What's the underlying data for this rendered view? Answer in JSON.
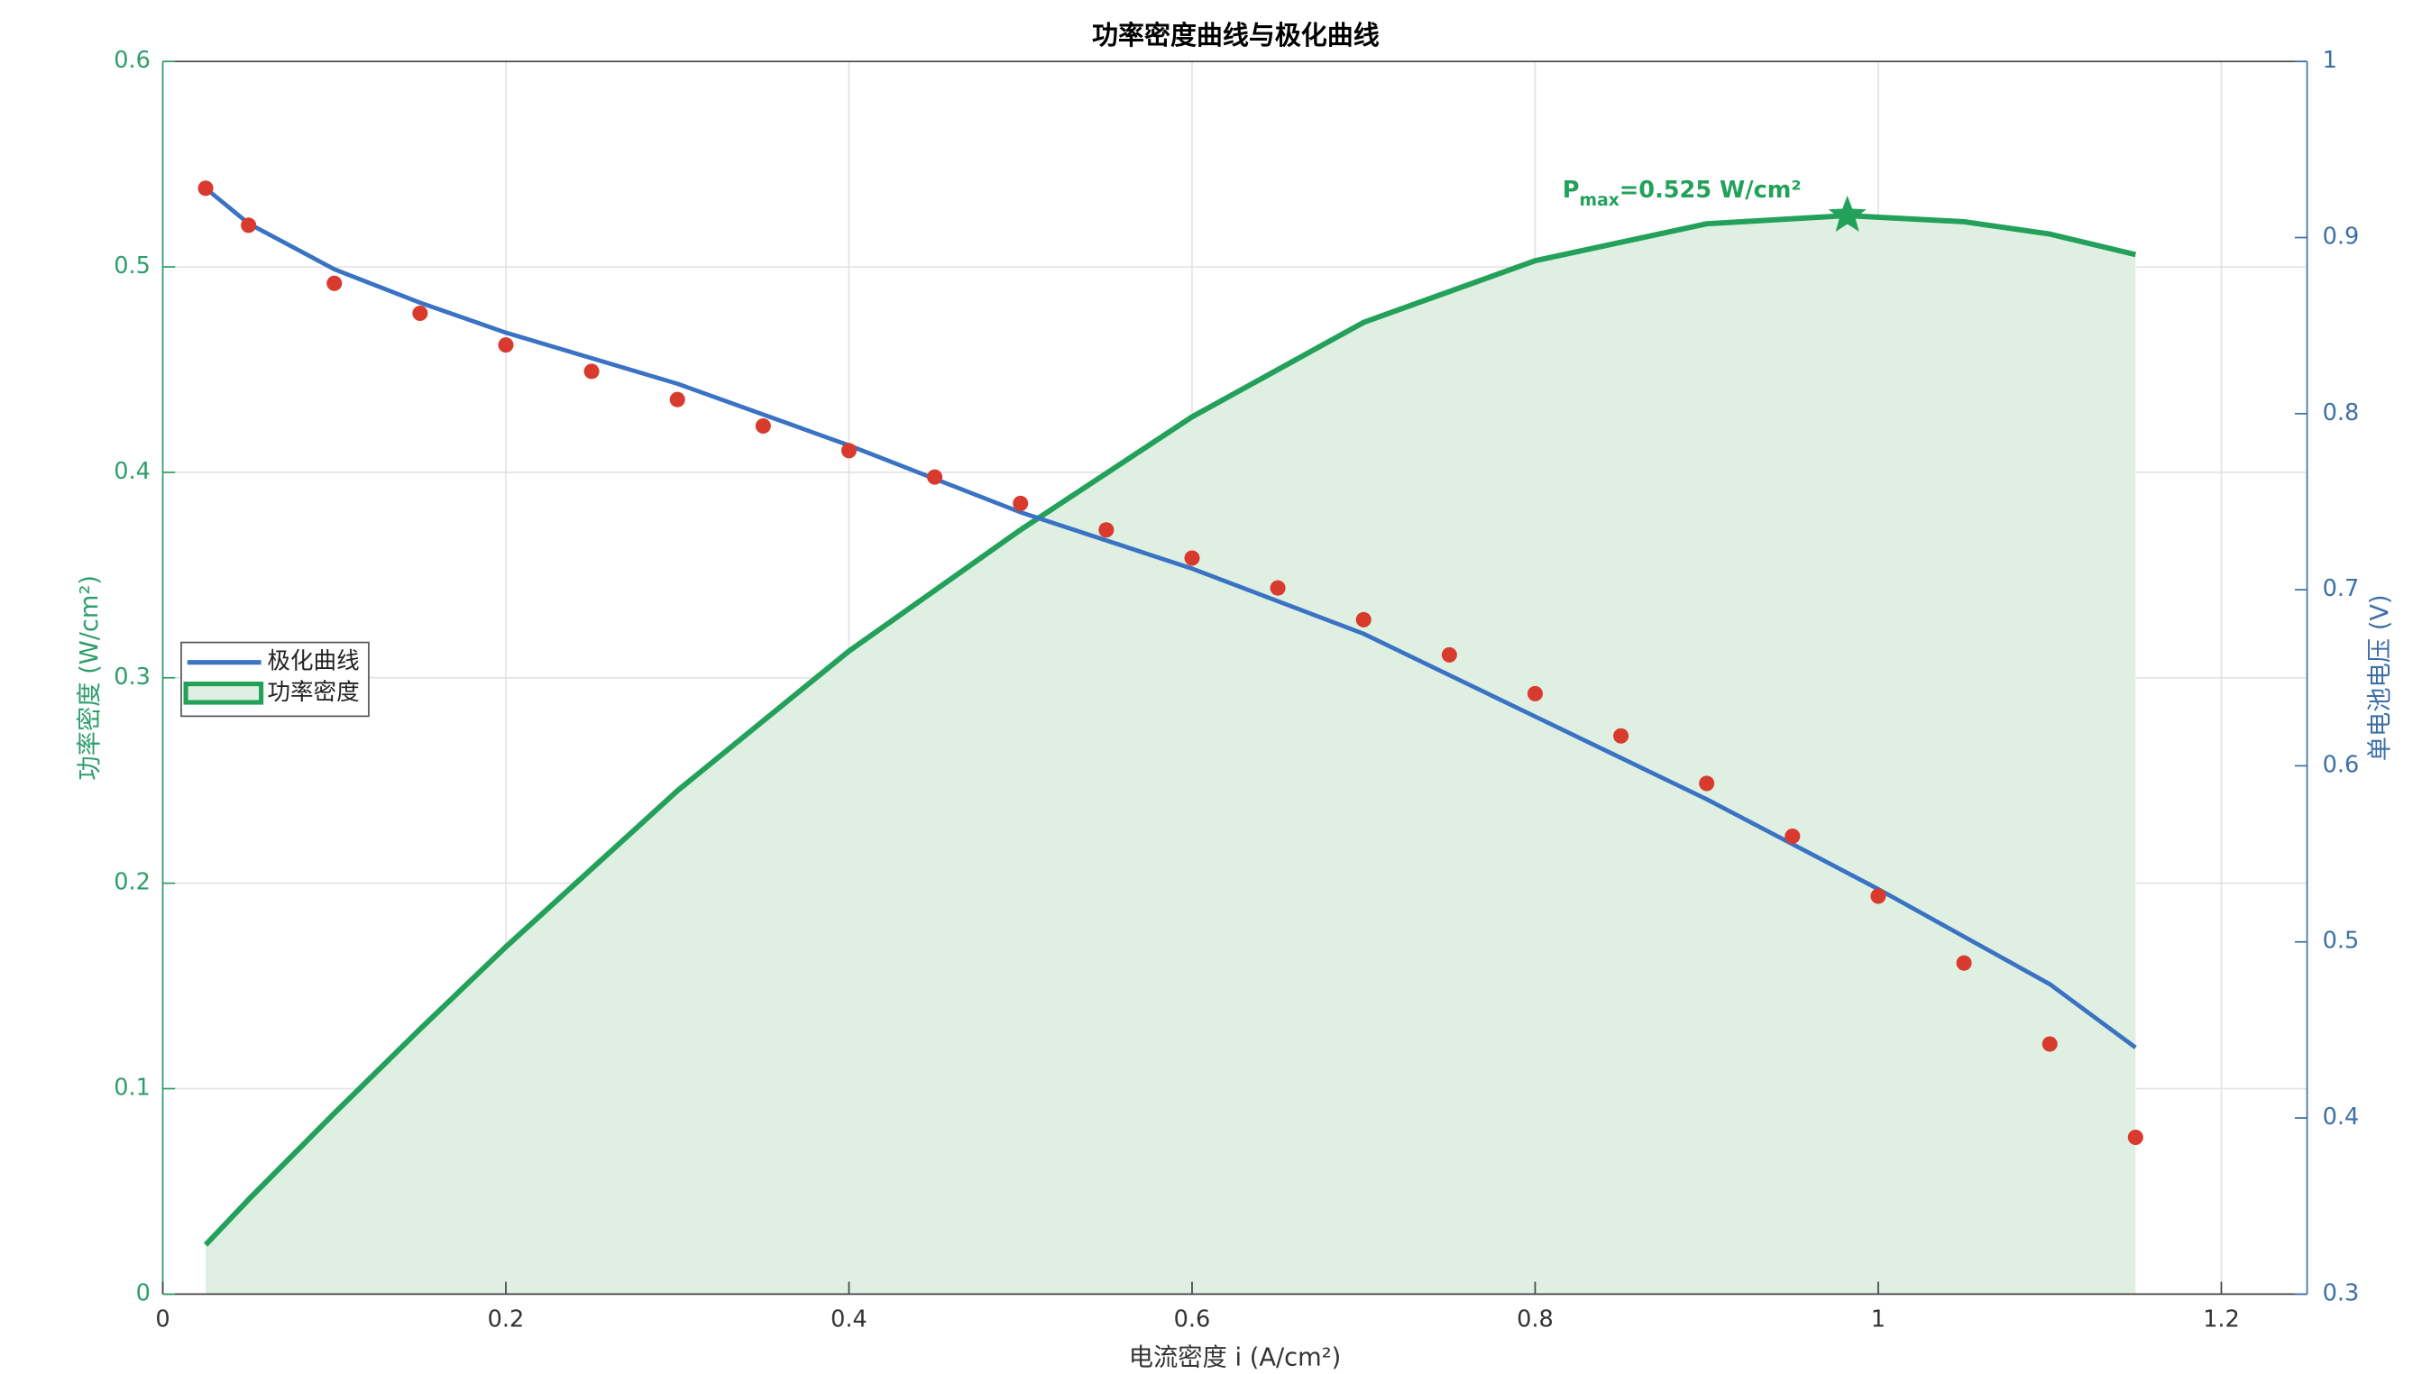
{
  "chart_data": {
    "type": "line",
    "title": "功率密度曲线与极化曲线",
    "xlabel": "电流密度 i (A/cm²)",
    "ylabel": "功率密度 (W/cm²)",
    "y2label": "单电池电压 (V)",
    "xlim": [
      0,
      1.25
    ],
    "xticks": [
      0,
      0.2,
      0.4,
      0.6,
      0.8,
      1,
      1.2
    ],
    "ylim": [
      0,
      0.6
    ],
    "yticks": [
      0,
      0.1,
      0.2,
      0.3,
      0.4,
      0.5,
      0.6
    ],
    "y2lim": [
      0.3,
      1
    ],
    "y2ticks": [
      0.3,
      0.4,
      0.5,
      0.6,
      0.7,
      0.8,
      0.9,
      1
    ],
    "grid": true,
    "legend": "left",
    "left_axis_color": "#2e9e6b",
    "right_axis_color": "#3d6fa8",
    "series": [
      {
        "name": "功率密度",
        "type": "area",
        "color": "#23a15a",
        "fill": "#dff0e3",
        "axis": "y",
        "x": [
          0.025,
          0.05,
          0.1,
          0.15,
          0.2,
          0.3,
          0.4,
          0.5,
          0.6,
          0.7,
          0.8,
          0.9,
          0.982,
          1.05,
          1.1,
          1.15
        ],
        "values": [
          0.024,
          0.046,
          0.088,
          0.129,
          0.169,
          0.245,
          0.313,
          0.372,
          0.427,
          0.473,
          0.503,
          0.521,
          0.525,
          0.522,
          0.516,
          0.506
        ]
      },
      {
        "name": "极化曲线",
        "type": "line",
        "color": "#3a72c4",
        "axis": "y2",
        "x": [
          0.025,
          0.05,
          0.1,
          0.15,
          0.2,
          0.3,
          0.4,
          0.5,
          0.6,
          0.7,
          0.8,
          0.9,
          1.0,
          1.1,
          1.15
        ],
        "values": [
          0.928,
          0.908,
          0.882,
          0.863,
          0.846,
          0.817,
          0.782,
          0.744,
          0.712,
          0.675,
          0.628,
          0.581,
          0.53,
          0.476,
          0.44
        ]
      },
      {
        "type": "scatter",
        "color": "#d83a2e",
        "axis": "y2",
        "x": [
          0.025,
          0.05,
          0.1,
          0.15,
          0.2,
          0.25,
          0.3,
          0.35,
          0.4,
          0.45,
          0.5,
          0.55,
          0.6,
          0.65,
          0.7,
          0.75,
          0.8,
          0.85,
          0.9,
          0.95,
          1.0,
          1.05,
          1.1,
          1.15
        ],
        "values": [
          0.928,
          0.907,
          0.874,
          0.857,
          0.839,
          0.824,
          0.808,
          0.793,
          0.779,
          0.764,
          0.749,
          0.734,
          0.718,
          0.701,
          0.683,
          0.663,
          0.641,
          0.617,
          0.59,
          0.56,
          0.526,
          0.488,
          0.442,
          0.389
        ]
      }
    ],
    "annotation": {
      "text": "P",
      "sub": "max",
      "rest": "=0.525 W/cm²",
      "x": 0.982,
      "y": 0.525,
      "color": "#23a15a"
    }
  }
}
